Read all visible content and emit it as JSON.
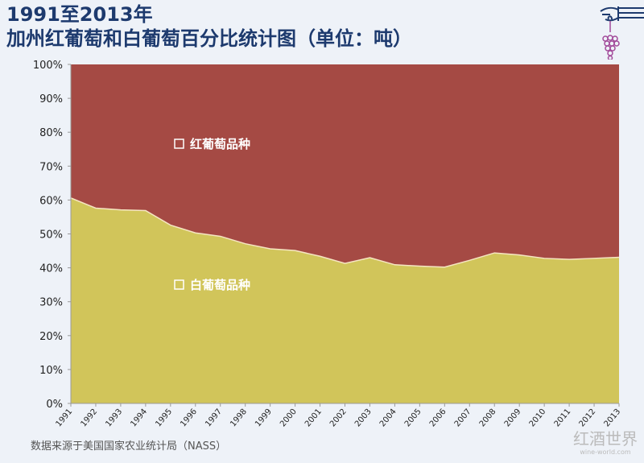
{
  "header": {
    "title_line1": "1991至2013年",
    "title_line2": "加州红葡萄和白葡萄百分比统计图（单位：吨）"
  },
  "footer": {
    "source": "数据来源于美国国家农业统计局（NASS）",
    "brand": "红酒世界",
    "brand_url": "wine-world.com"
  },
  "logo": {
    "icon": "hand-holding-grapes-icon"
  },
  "chart_data": {
    "type": "area",
    "stacked": "percent",
    "x": [
      "1991",
      "1992",
      "1993",
      "1994",
      "1995",
      "1996",
      "1997",
      "1998",
      "1999",
      "2000",
      "2001",
      "2002",
      "2003",
      "2004",
      "2005",
      "2006",
      "2007",
      "2008",
      "2009",
      "2010",
      "2011",
      "2012",
      "2013"
    ],
    "series": [
      {
        "name": "白葡萄品种",
        "color": "#d1c55a",
        "values": [
          60.6,
          57.6,
          57.1,
          56.9,
          52.6,
          50.3,
          49.3,
          47.1,
          45.6,
          45.1,
          43.4,
          41.3,
          43.0,
          40.9,
          40.5,
          40.2,
          42.2,
          44.4,
          43.8,
          42.8,
          42.5,
          42.8,
          43.1
        ]
      },
      {
        "name": "红葡萄品种",
        "color": "#a54a44",
        "values": [
          39.4,
          42.4,
          42.9,
          43.1,
          47.4,
          49.7,
          50.7,
          52.9,
          54.4,
          54.9,
          56.6,
          58.7,
          57.0,
          59.1,
          59.5,
          59.8,
          57.8,
          55.6,
          56.2,
          57.2,
          57.5,
          57.2,
          56.9
        ]
      }
    ],
    "ylim": [
      0,
      100
    ],
    "yticks": [
      "0%",
      "10%",
      "20%",
      "30%",
      "40%",
      "50%",
      "60%",
      "70%",
      "80%",
      "90%",
      "100%"
    ],
    "grid": false
  }
}
